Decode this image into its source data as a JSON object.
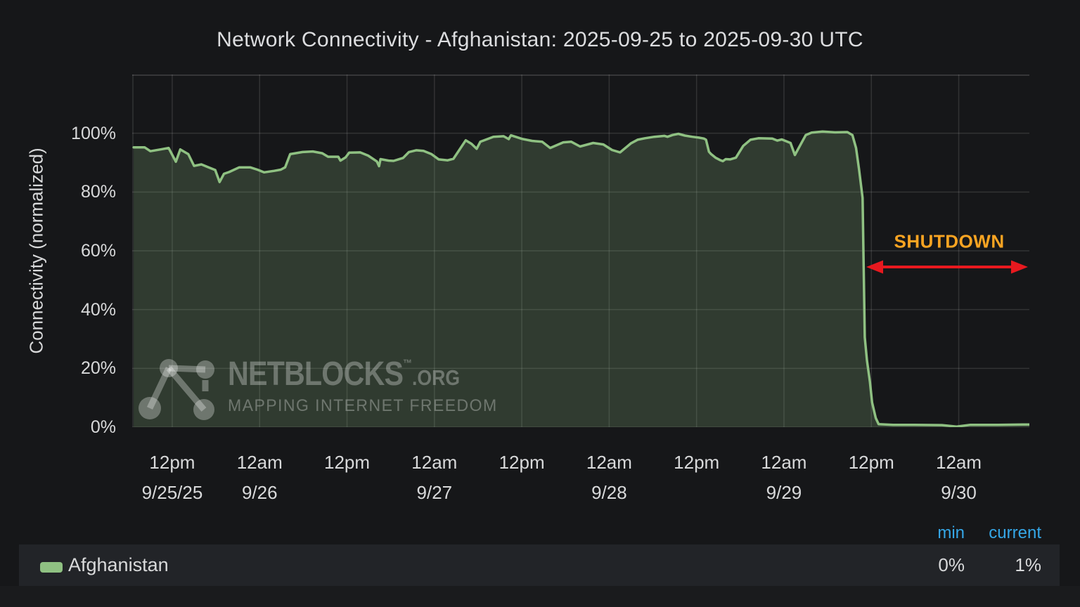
{
  "panel": {
    "title": "Network Connectivity - Afghanistan: 2025-09-25 to 2025-09-30 UTC"
  },
  "chart_data": {
    "type": "area",
    "title": "Network Connectivity - Afghanistan: 2025-09-25 to 2025-09-30 UTC",
    "xlabel": "",
    "ylabel": "Connectivity (normalized)",
    "ylim": [
      0,
      120
    ],
    "grid": true,
    "legend_position": "bottom",
    "x_unit": "hours since chart start",
    "x_range_hours": 123.2,
    "yticks": [
      {
        "v": 0,
        "label": "0%"
      },
      {
        "v": 20,
        "label": "20%"
      },
      {
        "v": 40,
        "label": "40%"
      },
      {
        "v": 60,
        "label": "60%"
      },
      {
        "v": 80,
        "label": "80%"
      },
      {
        "v": 100,
        "label": "100%"
      }
    ],
    "xticks": [
      {
        "t": 5.5,
        "time": "12pm",
        "date": "9/25/25"
      },
      {
        "t": 17.5,
        "time": "12am",
        "date": "9/26"
      },
      {
        "t": 29.5,
        "time": "12pm",
        "date": ""
      },
      {
        "t": 41.5,
        "time": "12am",
        "date": "9/27"
      },
      {
        "t": 53.5,
        "time": "12pm",
        "date": ""
      },
      {
        "t": 65.5,
        "time": "12am",
        "date": "9/28"
      },
      {
        "t": 77.5,
        "time": "12pm",
        "date": ""
      },
      {
        "t": 89.5,
        "time": "12am",
        "date": "9/29"
      },
      {
        "t": 101.5,
        "time": "12pm",
        "date": ""
      },
      {
        "t": 113.5,
        "time": "12am",
        "date": "9/30"
      }
    ],
    "series": [
      {
        "name": "Afghanistan",
        "color": "#8fc182",
        "points": [
          [
            0.2,
            95.2
          ],
          [
            1.7,
            95.2
          ],
          [
            2.5,
            93.9
          ],
          [
            3.9,
            94.5
          ],
          [
            5.0,
            95.0
          ],
          [
            6.0,
            90.3
          ],
          [
            6.6,
            94.5
          ],
          [
            7.7,
            92.9
          ],
          [
            8.5,
            88.9
          ],
          [
            9.5,
            89.4
          ],
          [
            10.5,
            88.4
          ],
          [
            11.4,
            87.5
          ],
          [
            12.0,
            83.4
          ],
          [
            12.6,
            86.2
          ],
          [
            13.3,
            86.8
          ],
          [
            14.7,
            88.4
          ],
          [
            16.2,
            88.4
          ],
          [
            17.2,
            87.6
          ],
          [
            18.1,
            86.7
          ],
          [
            19.5,
            87.2
          ],
          [
            20.4,
            87.6
          ],
          [
            21.0,
            88.4
          ],
          [
            21.7,
            92.9
          ],
          [
            23.4,
            93.6
          ],
          [
            24.8,
            93.8
          ],
          [
            26.1,
            93.2
          ],
          [
            26.9,
            92.0
          ],
          [
            28.3,
            92.0
          ],
          [
            28.6,
            90.7
          ],
          [
            29.3,
            91.8
          ],
          [
            29.8,
            93.4
          ],
          [
            31.3,
            93.5
          ],
          [
            32.4,
            92.4
          ],
          [
            33.6,
            90.4
          ],
          [
            33.9,
            88.8
          ],
          [
            34.1,
            91.2
          ],
          [
            35.2,
            90.7
          ],
          [
            35.9,
            90.6
          ],
          [
            37.2,
            91.6
          ],
          [
            38.0,
            93.6
          ],
          [
            39.0,
            94.2
          ],
          [
            40.0,
            94.0
          ],
          [
            41.1,
            92.9
          ],
          [
            42.1,
            91.1
          ],
          [
            43.3,
            90.8
          ],
          [
            44.1,
            91.3
          ],
          [
            45.8,
            97.6
          ],
          [
            46.6,
            96.4
          ],
          [
            47.3,
            94.7
          ],
          [
            47.8,
            97.1
          ],
          [
            49.6,
            98.8
          ],
          [
            51.0,
            99.0
          ],
          [
            51.7,
            98.0
          ],
          [
            52.0,
            99.3
          ],
          [
            53.5,
            98.1
          ],
          [
            54.9,
            97.4
          ],
          [
            56.3,
            97.1
          ],
          [
            57.4,
            95.0
          ],
          [
            59.2,
            96.9
          ],
          [
            60.3,
            97.1
          ],
          [
            61.5,
            95.5
          ],
          [
            63.3,
            96.7
          ],
          [
            64.7,
            96.2
          ],
          [
            65.9,
            94.3
          ],
          [
            67.0,
            93.5
          ],
          [
            68.5,
            96.6
          ],
          [
            69.4,
            97.8
          ],
          [
            70.4,
            98.3
          ],
          [
            71.7,
            98.8
          ],
          [
            73.1,
            99.1
          ],
          [
            73.5,
            98.8
          ],
          [
            74.2,
            99.4
          ],
          [
            75.0,
            99.8
          ],
          [
            75.9,
            99.2
          ],
          [
            76.9,
            98.8
          ],
          [
            77.8,
            98.5
          ],
          [
            78.5,
            98.2
          ],
          [
            78.8,
            97.8
          ],
          [
            79.2,
            93.7
          ],
          [
            79.5,
            92.9
          ],
          [
            80.1,
            91.7
          ],
          [
            80.7,
            90.9
          ],
          [
            81.1,
            90.5
          ],
          [
            81.5,
            91.2
          ],
          [
            82.1,
            91.1
          ],
          [
            82.9,
            91.7
          ],
          [
            83.9,
            95.7
          ],
          [
            84.9,
            97.8
          ],
          [
            86.0,
            98.3
          ],
          [
            87.9,
            98.2
          ],
          [
            88.6,
            97.5
          ],
          [
            89.2,
            97.9
          ],
          [
            90.4,
            96.7
          ],
          [
            91.0,
            92.6
          ],
          [
            92.5,
            99.4
          ],
          [
            93.3,
            100.2
          ],
          [
            94.8,
            100.6
          ],
          [
            96.5,
            100.3
          ],
          [
            98.2,
            100.4
          ],
          [
            98.9,
            99.4
          ],
          [
            99.4,
            95.0
          ],
          [
            99.8,
            88.0
          ],
          [
            100.3,
            78.0
          ],
          [
            100.6,
            30.6
          ],
          [
            100.9,
            22.7
          ],
          [
            101.3,
            15.5
          ],
          [
            101.6,
            8.4
          ],
          [
            102.1,
            3.1
          ],
          [
            102.5,
            1.0
          ],
          [
            104.5,
            0.8
          ],
          [
            107.4,
            0.8
          ],
          [
            111.2,
            0.7
          ],
          [
            113.2,
            0.2
          ],
          [
            115.1,
            0.8
          ],
          [
            118.9,
            0.8
          ],
          [
            122.3,
            0.9
          ],
          [
            123.2,
            0.9
          ]
        ]
      }
    ],
    "annotation": {
      "label": "SHUTDOWN",
      "t_start": 100.8,
      "t_end": 123.0,
      "arrow_v": 54.5,
      "label_t": 112.2,
      "label_v": 63.2
    }
  },
  "legend": {
    "columns": [
      "min",
      "current"
    ],
    "rows": [
      {
        "label": "Afghanistan",
        "min": "0%",
        "current": "1%"
      }
    ]
  },
  "watermark": {
    "brand": "NETBLOCKS",
    "tm": "™",
    "suffix": ".ORG",
    "tagline": "MAPPING INTERNET FREEDOM"
  },
  "colors": {
    "background": "#161719",
    "legend_row_bg": "#222428",
    "text": "#d8d9da",
    "line_green": "#8fc182",
    "area_fill": "rgba(143,193,130,0.22)",
    "grid": "rgba(255,255,255,0.12)",
    "border": "rgba(255,255,255,0.18)",
    "header_blue": "#35a6e6",
    "shutdown_orange": "#f9a422",
    "arrow_red": "#e8191f",
    "watermark_gray": "rgba(255,255,255,0.30)"
  }
}
